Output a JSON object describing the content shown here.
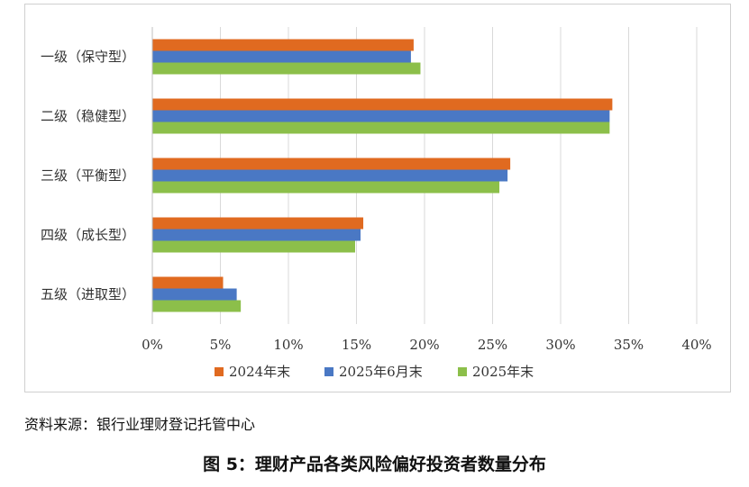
{
  "chart_data": {
    "type": "bar",
    "orientation": "horizontal",
    "categories": [
      "一级（保守型）",
      "二级（稳健型）",
      "三级（平衡型）",
      "四级（成长型）",
      "五级（进取型）"
    ],
    "series": [
      {
        "name": "2024年末",
        "color": "#e06a20",
        "values": [
          19.2,
          33.8,
          26.3,
          15.5,
          5.2
        ]
      },
      {
        "name": "2025年6月末",
        "color": "#4a78c4",
        "values": [
          19.0,
          33.6,
          26.1,
          15.3,
          6.2
        ]
      },
      {
        "name": "2025年末",
        "color": "#8cbf4a",
        "values": [
          19.7,
          33.6,
          25.5,
          14.9,
          6.5
        ]
      }
    ],
    "xlim": [
      0,
      40
    ],
    "x_ticks": [
      "0%",
      "5%",
      "10%",
      "15%",
      "20%",
      "25%",
      "30%",
      "35%",
      "40%"
    ],
    "grid": "vertical",
    "legend_position": "bottom"
  },
  "source_note": "资料来源：银行业理财登记托管中心",
  "caption": "图 5：理财产品各类风险偏好投资者数量分布"
}
